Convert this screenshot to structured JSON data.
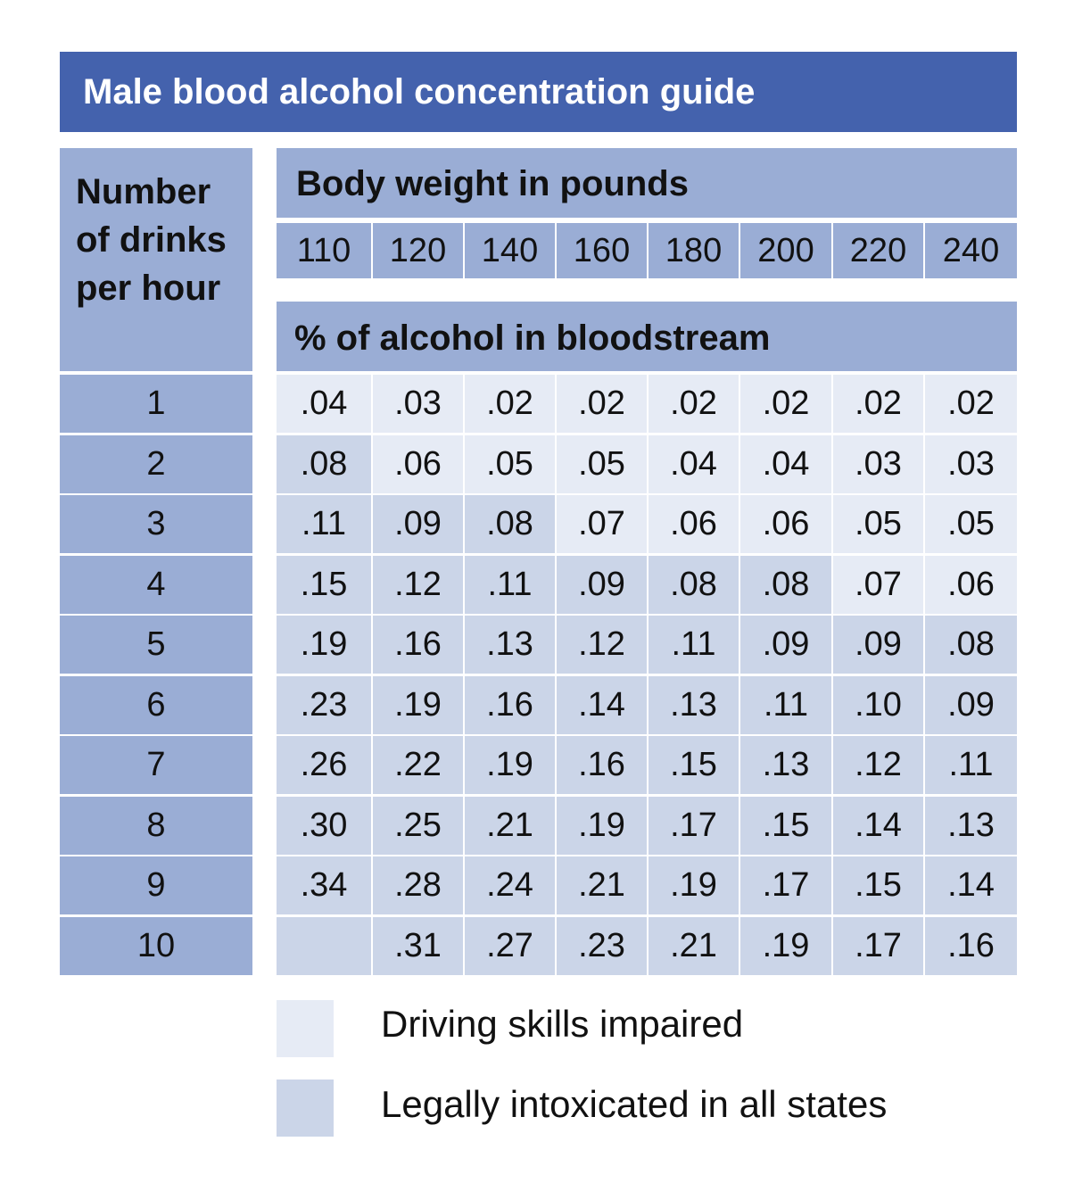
{
  "title": "Male blood alcohol concentration guide",
  "row_header": [
    "Number",
    "of drinks",
    "per hour"
  ],
  "weight_header": "Body weight in pounds",
  "percent_header": "% of alcohol in bloodstream",
  "legend": {
    "impaired": "Driving skills impaired",
    "intoxicated": "Legally intoxicated in all states"
  },
  "colors": {
    "title_bg": "#4462ad",
    "header_bg": "#9aadd5",
    "impaired": "#e6ebf5",
    "intoxicated": "#cbd5e8"
  },
  "chart_data": {
    "type": "table",
    "title": "Male blood alcohol concentration guide",
    "columns": [
      "110",
      "120",
      "140",
      "160",
      "180",
      "200",
      "220",
      "240"
    ],
    "rows": [
      "1",
      "2",
      "3",
      "4",
      "5",
      "6",
      "7",
      "8",
      "9",
      "10"
    ],
    "values": [
      [
        ".04",
        ".03",
        ".02",
        ".02",
        ".02",
        ".02",
        ".02",
        ".02"
      ],
      [
        ".08",
        ".06",
        ".05",
        ".05",
        ".04",
        ".04",
        ".03",
        ".03"
      ],
      [
        ".11",
        ".09",
        ".08",
        ".07",
        ".06",
        ".06",
        ".05",
        ".05"
      ],
      [
        ".15",
        ".12",
        ".11",
        ".09",
        ".08",
        ".08",
        ".07",
        ".06"
      ],
      [
        ".19",
        ".16",
        ".13",
        ".12",
        ".11",
        ".09",
        ".09",
        ".08"
      ],
      [
        ".23",
        ".19",
        ".16",
        ".14",
        ".13",
        ".11",
        ".10",
        ".09"
      ],
      [
        ".26",
        ".22",
        ".19",
        ".16",
        ".15",
        ".13",
        ".12",
        ".11"
      ],
      [
        ".30",
        ".25",
        ".21",
        ".19",
        ".17",
        ".15",
        ".14",
        ".13"
      ],
      [
        ".34",
        ".28",
        ".24",
        ".21",
        ".19",
        ".17",
        ".15",
        ".14"
      ],
      [
        "",
        ".31",
        ".27",
        ".23",
        ".21",
        ".19",
        ".17",
        ".16"
      ]
    ],
    "categories": [
      [
        "impaired",
        "impaired",
        "impaired",
        "impaired",
        "impaired",
        "impaired",
        "impaired",
        "impaired"
      ],
      [
        "intoxicated",
        "impaired",
        "impaired",
        "impaired",
        "impaired",
        "impaired",
        "impaired",
        "impaired"
      ],
      [
        "intoxicated",
        "intoxicated",
        "intoxicated",
        "impaired",
        "impaired",
        "impaired",
        "impaired",
        "impaired"
      ],
      [
        "intoxicated",
        "intoxicated",
        "intoxicated",
        "intoxicated",
        "intoxicated",
        "intoxicated",
        "impaired",
        "impaired"
      ],
      [
        "intoxicated",
        "intoxicated",
        "intoxicated",
        "intoxicated",
        "intoxicated",
        "intoxicated",
        "intoxicated",
        "intoxicated"
      ],
      [
        "intoxicated",
        "intoxicated",
        "intoxicated",
        "intoxicated",
        "intoxicated",
        "intoxicated",
        "intoxicated",
        "intoxicated"
      ],
      [
        "intoxicated",
        "intoxicated",
        "intoxicated",
        "intoxicated",
        "intoxicated",
        "intoxicated",
        "intoxicated",
        "intoxicated"
      ],
      [
        "intoxicated",
        "intoxicated",
        "intoxicated",
        "intoxicated",
        "intoxicated",
        "intoxicated",
        "intoxicated",
        "intoxicated"
      ],
      [
        "intoxicated",
        "intoxicated",
        "intoxicated",
        "intoxicated",
        "intoxicated",
        "intoxicated",
        "intoxicated",
        "intoxicated"
      ],
      [
        "intoxicated",
        "intoxicated",
        "intoxicated",
        "intoxicated",
        "intoxicated",
        "intoxicated",
        "intoxicated",
        "intoxicated"
      ]
    ]
  }
}
